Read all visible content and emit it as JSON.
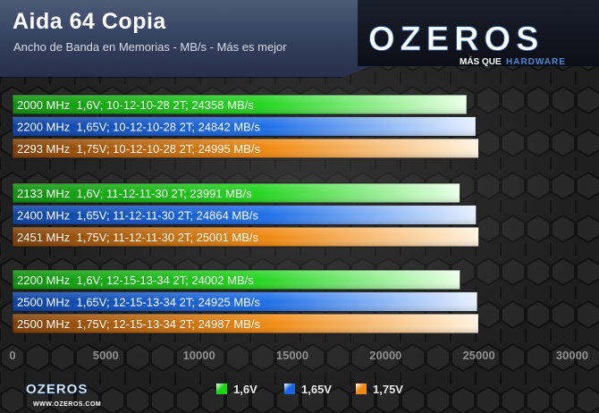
{
  "header": {
    "title": "Aida 64 Copia",
    "subtitle": "Ancho de Banda en Memorias - MB/s - Más es mejor"
  },
  "logo": {
    "main_text": "OZEROS",
    "tagline_left": "MÁS QUE",
    "tagline_right": "HARDWARE",
    "footer_url": "WWW.OZEROS.COM"
  },
  "colors": {
    "green": "#1cd318",
    "blue": "#1a66e0",
    "orange": "#ef8a12",
    "logo_blue": "#2d5ea8",
    "axis_text": "#8f8f8f"
  },
  "chart_data": {
    "type": "bar",
    "orientation": "horizontal",
    "title": "Aida 64 Copia",
    "subtitle": "Ancho de Banda en Memorias - MB/s - Más es mejor",
    "xlim": [
      0,
      30000
    ],
    "xticks": [
      0,
      5000,
      10000,
      15000,
      20000,
      25000,
      30000
    ],
    "legend_position": "bottom",
    "series": [
      {
        "name": "1,6V",
        "color": "#1cd318"
      },
      {
        "name": "1,65V",
        "color": "#1a66e0"
      },
      {
        "name": "1,75V",
        "color": "#ef8a12"
      }
    ],
    "groups": [
      {
        "bars": [
          {
            "label": "2000 MHz  1,6V; 10-12-10-28 2T; 24358 MB/s",
            "value": 24358,
            "series": 0
          },
          {
            "label": "2200 MHz  1,65V; 10-12-10-28 2T; 24842 MB/s",
            "value": 24842,
            "series": 1
          },
          {
            "label": "2293 MHz  1,75V; 10-12-10-28 2T; 24995 MB/s",
            "value": 24995,
            "series": 2
          }
        ]
      },
      {
        "bars": [
          {
            "label": "2133 MHz  1,6V; 11-12-11-30 2T; 23991 MB/s",
            "value": 23991,
            "series": 0
          },
          {
            "label": "2400 MHz  1,65V; 11-12-11-30 2T; 24864 MB/s",
            "value": 24864,
            "series": 1
          },
          {
            "label": "2451 MHz  1,75V; 11-12-11-30 2T; 25001 MB/s",
            "value": 25001,
            "series": 2
          }
        ]
      },
      {
        "bars": [
          {
            "label": "2200 MHz  1,6V; 12-15-13-34 2T; 24002 MB/s",
            "value": 24002,
            "series": 0
          },
          {
            "label": "2500 MHz  1,65V; 12-15-13-34 2T; 24925 MB/s",
            "value": 24925,
            "series": 1
          },
          {
            "label": "2500 MHz  1,75V; 12-15-13-34 2T; 24987 MB/s",
            "value": 24987,
            "series": 2
          }
        ]
      }
    ]
  }
}
